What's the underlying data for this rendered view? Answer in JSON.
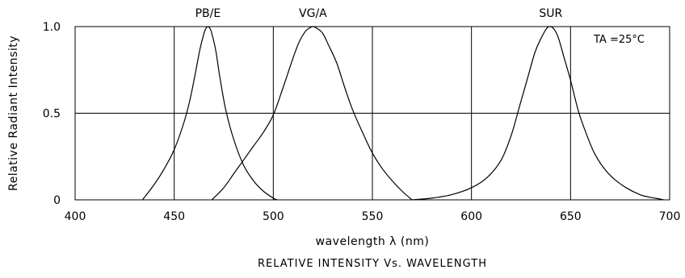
{
  "chart_data": {
    "type": "line",
    "title": "RELATIVE INTENSITY Vs. WAVELENGTH",
    "xlabel": "wavelength λ (nm)",
    "ylabel": "Relative Radiant Intensity",
    "xlim": [
      400,
      700
    ],
    "ylim": [
      0,
      1.0
    ],
    "x_ticks": [
      400,
      450,
      500,
      550,
      600,
      650,
      700
    ],
    "x_tick_labels": [
      "400",
      "450",
      "500",
      "550",
      "600",
      "650",
      "700"
    ],
    "y_ticks": [
      0,
      0.5,
      1.0
    ],
    "y_tick_labels": [
      "0",
      "0.5",
      "1.0"
    ],
    "grid": true,
    "annotation": "TA =25°C",
    "colors": {
      "line": "#000000",
      "background": "#ffffff"
    },
    "series": [
      {
        "name": "PB/E",
        "x": [
          434,
          440,
          445,
          450,
          455,
          458,
          461,
          463,
          465,
          466,
          467,
          468,
          469,
          471,
          473,
          476,
          480,
          485,
          490,
          495,
          500,
          502
        ],
        "y": [
          0.0,
          0.09,
          0.18,
          0.29,
          0.45,
          0.58,
          0.75,
          0.87,
          0.96,
          0.99,
          1.0,
          0.99,
          0.96,
          0.86,
          0.71,
          0.52,
          0.35,
          0.2,
          0.11,
          0.05,
          0.01,
          0.0
        ]
      },
      {
        "name": "VG/A",
        "x": [
          469,
          475,
          480,
          485,
          490,
          495,
          500,
          505,
          510,
          513,
          516,
          518,
          520,
          522,
          525,
          528,
          532,
          536,
          540,
          545,
          550,
          555,
          560,
          565,
          570
        ],
        "y": [
          0.0,
          0.07,
          0.15,
          0.23,
          0.31,
          0.39,
          0.49,
          0.65,
          0.82,
          0.91,
          0.97,
          0.99,
          1.0,
          0.99,
          0.96,
          0.89,
          0.79,
          0.65,
          0.52,
          0.39,
          0.27,
          0.18,
          0.11,
          0.05,
          0.0
        ]
      },
      {
        "name": "SUR",
        "x": [
          570,
          580,
          590,
          600,
          608,
          615,
          620,
          624,
          628,
          632,
          635,
          638,
          640,
          642,
          644,
          647,
          650,
          654,
          658,
          662,
          667,
          672,
          678,
          685,
          690,
          695,
          697
        ],
        "y": [
          0.0,
          0.01,
          0.03,
          0.07,
          0.13,
          0.23,
          0.37,
          0.53,
          0.69,
          0.85,
          0.93,
          0.99,
          1.0,
          0.98,
          0.93,
          0.81,
          0.69,
          0.51,
          0.38,
          0.27,
          0.18,
          0.12,
          0.07,
          0.03,
          0.015,
          0.005,
          0.0
        ]
      }
    ]
  }
}
